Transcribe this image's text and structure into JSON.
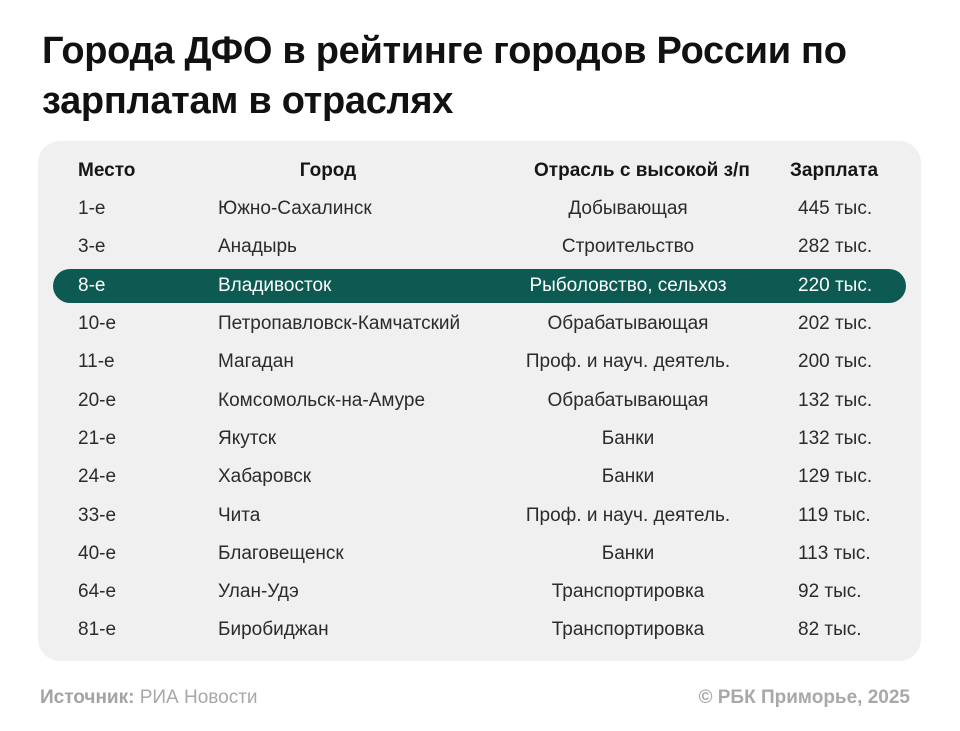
{
  "title": "Города ДФО в рейтинге городов России по зарплатам в отраслях",
  "table": {
    "headers": {
      "place": "Место",
      "city": "Город",
      "industry": "Отрасль с высокой з/п",
      "salary": "Зарплата"
    },
    "highlight_color": "#0d5a52",
    "rows": [
      {
        "place": "1-е",
        "city": "Южно-Сахалинск",
        "industry": "Добывающая",
        "salary": "445 тыс."
      },
      {
        "place": "3-е",
        "city": "Анадырь",
        "industry": "Строительство",
        "salary": "282 тыс."
      },
      {
        "place": "8-е",
        "city": "Владивосток",
        "industry": "Рыболовство, сельхоз",
        "salary": "220 тыс."
      },
      {
        "place": "10-е",
        "city": "Петропавловск-Камчатский",
        "industry": "Обрабатывающая",
        "salary": "202 тыс."
      },
      {
        "place": "11-е",
        "city": "Магадан",
        "industry": "Проф. и науч. деятель.",
        "salary": "200 тыс."
      },
      {
        "place": "20-е",
        "city": "Комсомольск-на-Амуре",
        "industry": "Обрабатывающая",
        "salary": "132 тыс."
      },
      {
        "place": "21-е",
        "city": "Якутск",
        "industry": "Банки",
        "salary": "132 тыс."
      },
      {
        "place": "24-е",
        "city": "Хабаровск",
        "industry": "Банки",
        "salary": "129 тыс."
      },
      {
        "place": "33-е",
        "city": "Чита",
        "industry": "Проф. и науч. деятель.",
        "salary": "119 тыс."
      },
      {
        "place": "40-е",
        "city": "Благовещенск",
        "industry": "Банки",
        "salary": "113 тыс."
      },
      {
        "place": "64-е",
        "city": "Улан-Удэ",
        "industry": "Транспортировка",
        "salary": "92 тыс."
      },
      {
        "place": "81-е",
        "city": "Биробиджан",
        "industry": "Транспортировка",
        "salary": "82 тыс."
      }
    ]
  },
  "footer": {
    "source_label": "Источник:",
    "source_value": "РИА Новости",
    "copyright": "© РБК Приморье, 2025"
  }
}
